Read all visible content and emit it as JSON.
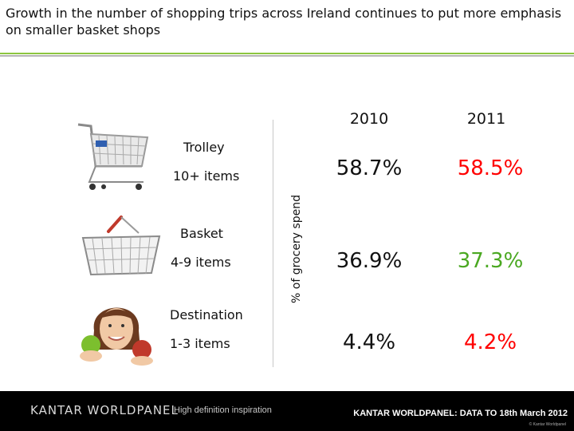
{
  "title": "Growth in the number of shopping trips across Ireland continues to put more emphasis on smaller basket shops",
  "y_axis_label": "% of grocery spend",
  "years": [
    "2010",
    "2011"
  ],
  "rows": [
    {
      "name": "Trolley",
      "range": "10+ items",
      "v2010": "58.7%",
      "v2011": "58.5%",
      "icon": "shopping-trolley-icon"
    },
    {
      "name": "Basket",
      "range": "4-9 items",
      "v2010": "36.9%",
      "v2011": "37.3%",
      "icon": "shopping-basket-icon"
    },
    {
      "name": "Destination",
      "range": "1-3 items",
      "v2010": "4.4%",
      "v2011": "4.2%",
      "icon": "woman-with-apples-photo"
    }
  ],
  "colors": {
    "up": "#4aa821",
    "down": "#ff0000",
    "neutral": "#111111",
    "accent_green": "#8cc63f"
  },
  "footer": {
    "logo": "KANTAR WORLDPANEL",
    "tagline": "High definition inspiration",
    "source": "KANTAR WORLDPANEL: DATA TO 18th March 2012",
    "copyright": "© Kantar Worldpanel"
  }
}
